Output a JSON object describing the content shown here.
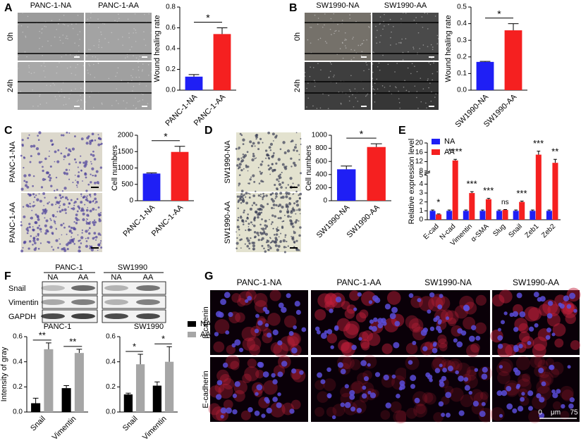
{
  "panels": {
    "A": {
      "label": "A",
      "columns": [
        "PANC-1-NA",
        "PANC-1-AA"
      ],
      "rows": [
        "0h",
        "24h"
      ]
    },
    "B": {
      "label": "B",
      "columns": [
        "SW1990-NA",
        "SW1990-AA"
      ],
      "rows": [
        "0h",
        "24h"
      ]
    },
    "C": {
      "label": "C",
      "rows": [
        "PANC-1-NA",
        "PANC-1-AA"
      ]
    },
    "D": {
      "label": "D",
      "rows": [
        "SW1990-NA",
        "SW1990-AA"
      ]
    },
    "E": {
      "label": "E"
    },
    "F": {
      "label": "F",
      "groups": [
        "PANC-1",
        "SW1990"
      ],
      "lanes": [
        "NA",
        "AA",
        "NA",
        "AA"
      ],
      "rows": [
        "Snail",
        "Vimentin",
        "GAPDH"
      ]
    },
    "G": {
      "label": "G",
      "columns": [
        "PANC-1-NA",
        "PANC-1-AA",
        "SW1990-NA",
        "SW1990-AA"
      ],
      "rows": [
        "β-catenin",
        "E-cadherin"
      ],
      "scale_bar": [
        "0",
        "μm",
        "75"
      ]
    }
  },
  "chart_data": [
    {
      "type": "bar",
      "ylabel": "Wound healing rate",
      "categories": [
        "PANC-1-NA",
        "PANC-1-AA"
      ],
      "values": [
        0.13,
        0.54
      ],
      "errors": [
        0.02,
        0.06
      ],
      "colors": [
        "#1f1ff5",
        "#f52020"
      ],
      "significance": "*",
      "ylim": [
        0,
        0.8
      ],
      "yticks": [
        {
          "value": 0,
          "label": "0.0"
        },
        0.2,
        0.4,
        0.6,
        0.8
      ]
    },
    {
      "type": "bar",
      "ylabel": "Wound healing rate",
      "categories": [
        "SW1990-NA",
        "SW1990-AA"
      ],
      "values": [
        0.17,
        0.36
      ],
      "errors": [
        0.003,
        0.04
      ],
      "colors": [
        "#1f1ff5",
        "#f52020"
      ],
      "significance": "*",
      "ylim": [
        0,
        0.5
      ],
      "yticks": [
        {
          "value": 0,
          "label": "0.0"
        },
        0.1,
        0.2,
        0.3,
        0.4,
        0.5
      ]
    },
    {
      "type": "bar",
      "ylabel": "Cell numbers",
      "categories": [
        "PANC-1-NA",
        "PANC-1-AA"
      ],
      "values": [
        830,
        1490
      ],
      "errors": [
        20,
        170
      ],
      "colors": [
        "#1f1ff5",
        "#f52020"
      ],
      "significance": "*",
      "ylim": [
        0,
        2000
      ],
      "yticks": [
        0,
        500,
        1000,
        1500,
        2000
      ]
    },
    {
      "type": "bar",
      "ylabel": "Cell numbers",
      "categories": [
        "SW1990-NA",
        "SW1990-AA"
      ],
      "values": [
        480,
        820
      ],
      "errors": [
        50,
        50
      ],
      "colors": [
        "#1f1ff5",
        "#f52020"
      ],
      "significance": "*",
      "ylim": [
        0,
        1000
      ],
      "yticks": [
        0,
        200,
        400,
        600,
        800,
        1000
      ]
    },
    {
      "type": "grouped_bar",
      "ylabel": "Relative expression level",
      "categories": [
        "E-cad",
        "N-cad",
        "Vimentin",
        "α-SMA",
        "Slug",
        "Snail",
        "Zeb1",
        "Zeb2"
      ],
      "series": [
        {
          "name": "NA",
          "color": "#1f1ff5",
          "values": [
            1,
            1,
            1,
            1,
            1,
            1,
            1,
            1
          ],
          "errors": [
            0.1,
            0.1,
            0.1,
            0.1,
            0.1,
            0.1,
            0.1,
            0.1
          ]
        },
        {
          "name": "AA",
          "color": "#f52020",
          "values": [
            0.6,
            12.5,
            3,
            2.3,
            1.1,
            2,
            15,
            11.5
          ],
          "errors": [
            0.05,
            0.5,
            0.15,
            0.1,
            0.05,
            0.1,
            1.5,
            1.5
          ]
        }
      ],
      "significance": [
        "*",
        "****",
        "***",
        "***",
        "ns",
        "***",
        "***",
        "**"
      ],
      "ylim": [
        0,
        20
      ],
      "axis_break": [
        5,
        8
      ],
      "yticks": [
        0,
        1,
        2,
        3,
        4,
        5,
        8,
        12,
        16,
        20
      ],
      "legend": "upper left"
    },
    {
      "type": "grouped_bar",
      "title": "PANC-1",
      "ylabel": "Intensity of gray",
      "categories": [
        "Snail",
        "Vimentin"
      ],
      "series": [
        {
          "name": "NA",
          "color": "#000000",
          "values": [
            0.07,
            0.19
          ],
          "errors": [
            0.04,
            0.02
          ]
        },
        {
          "name": "AA",
          "color": "#a6a6a6",
          "values": [
            0.5,
            0.47
          ],
          "errors": [
            0.05,
            0.03
          ]
        }
      ],
      "significance": [
        "**",
        "**"
      ],
      "ylim": [
        0,
        0.6
      ],
      "yticks": [
        {
          "value": 0,
          "label": "0.0"
        },
        0.2,
        0.4,
        0.6
      ]
    },
    {
      "type": "grouped_bar",
      "title": "SW1990",
      "categories": [
        "Snail",
        "Vimentin"
      ],
      "series": [
        {
          "name": "NA",
          "color": "#000000",
          "values": [
            0.14,
            0.21
          ],
          "errors": [
            0.01,
            0.03
          ]
        },
        {
          "name": "AA",
          "color": "#a6a6a6",
          "values": [
            0.38,
            0.4
          ],
          "errors": [
            0.08,
            0.12
          ]
        }
      ],
      "significance": [
        "*",
        "*"
      ],
      "ylim": [
        0,
        0.6
      ],
      "yticks": [
        {
          "value": 0,
          "label": "0.0"
        },
        0.2,
        0.4,
        0.6
      ],
      "legend": "right"
    }
  ]
}
